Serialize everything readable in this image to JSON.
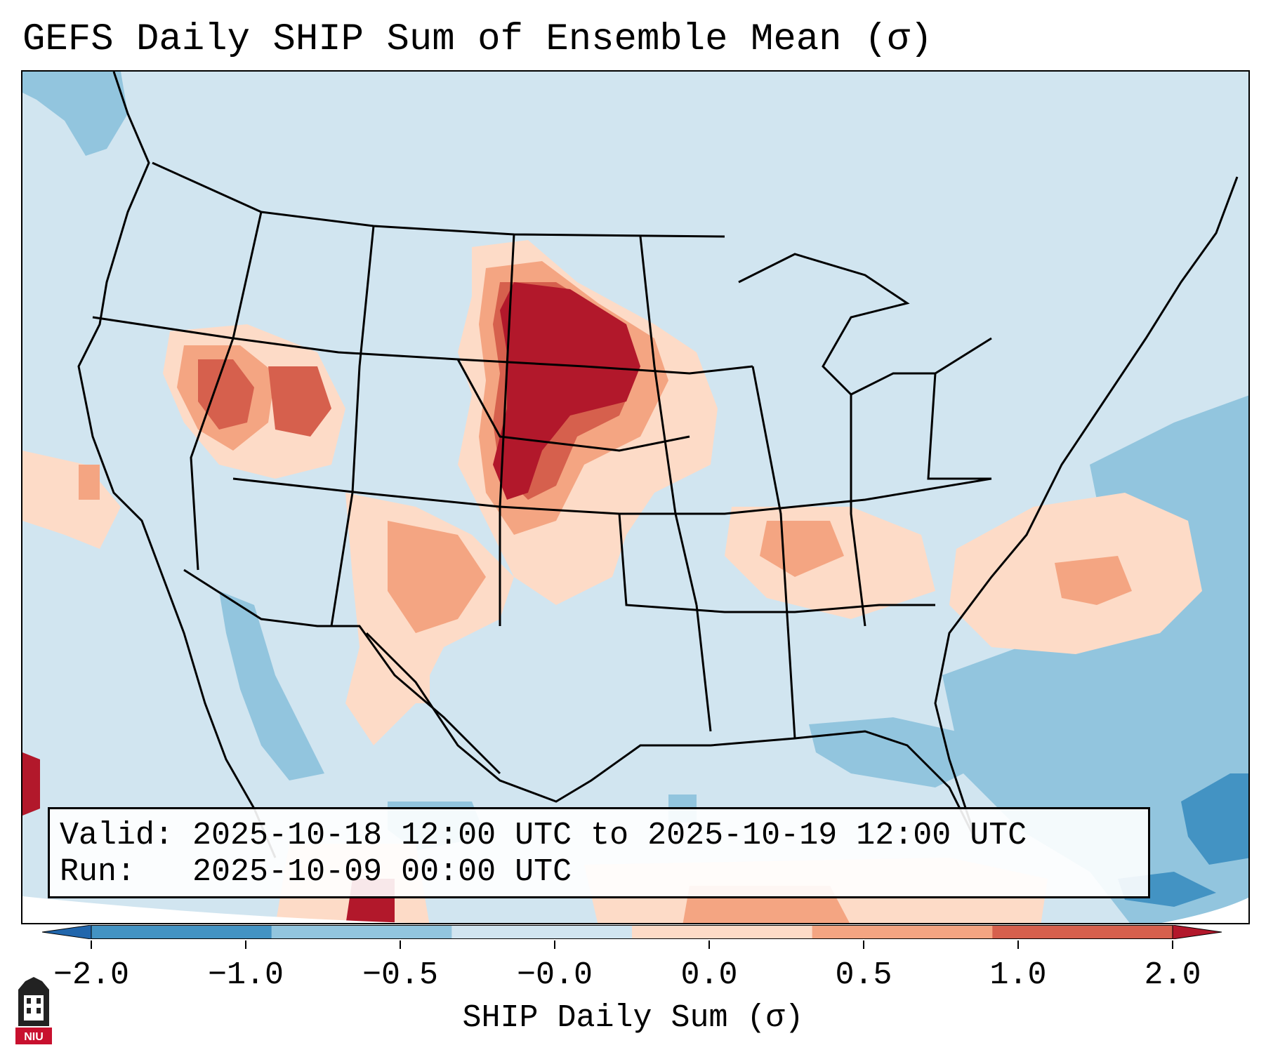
{
  "title": "GEFS Daily SHIP Sum of Ensemble Mean (σ)",
  "infobox": {
    "valid_label": "Valid:",
    "valid_value": "2025-10-18 12:00 UTC to 2025-10-19 12:00 UTC",
    "run_label": "Run:",
    "run_value": "2025-10-09 00:00 UTC"
  },
  "colorbar": {
    "label": "SHIP Daily Sum (σ)",
    "ticks": [
      "−2.0",
      "−1.0",
      "−0.5",
      "−0.0",
      "0.0",
      "0.5",
      "1.0",
      "2.0"
    ],
    "colors": [
      "#4393c3",
      "#92c5de",
      "#d1e5f0",
      "#fddbc7",
      "#f4a582",
      "#d6604d"
    ],
    "under_color": "#2166ac",
    "over_color": "#b2182b"
  },
  "colors": {
    "background": "#d1e5f0",
    "neg_light": "#92c5de",
    "neg_mid": "#4393c3",
    "pos_light": "#fddbc7",
    "pos_mid": "#f4a582",
    "pos_strong": "#d6604d",
    "pos_max": "#b2182b"
  },
  "logo": {
    "icon": "niu-logo-icon",
    "text": "NIU"
  }
}
